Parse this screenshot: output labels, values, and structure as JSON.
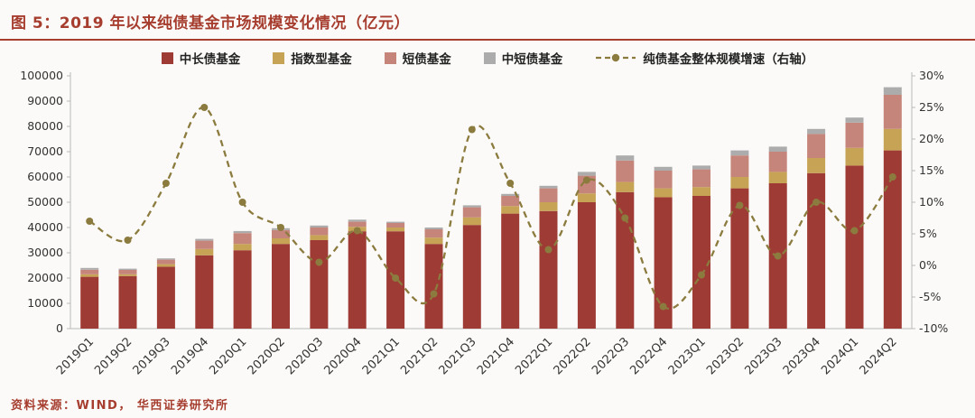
{
  "header": {
    "title": "图 5：2019 年以来纯债基金市场规模变化情况（亿元）"
  },
  "footer": {
    "source": "资料来源：WIND， 华西证券研究所"
  },
  "colors": {
    "accent_red": "#A63D2F",
    "axis_text": "#333333"
  },
  "chart_data": {
    "type": "bar",
    "subtype": "stacked-bar-with-line",
    "title": "2019 年以来纯债基金市场规模变化情况（亿元）",
    "grid": false,
    "legend_position": "top",
    "categories": [
      "2019Q1",
      "2019Q2",
      "2019Q3",
      "2019Q4",
      "2020Q1",
      "2020Q2",
      "2020Q3",
      "2020Q4",
      "2021Q1",
      "2021Q2",
      "2021Q3",
      "2021Q4",
      "2022Q1",
      "2022Q2",
      "2022Q3",
      "2022Q4",
      "2023Q1",
      "2023Q2",
      "2023Q3",
      "2023Q4",
      "2024Q1",
      "2024Q2"
    ],
    "series": [
      {
        "name": "中长债基金",
        "color": "#9F3B35",
        "values": [
          20500,
          20800,
          24500,
          29000,
          31000,
          33500,
          35000,
          38500,
          38500,
          33500,
          41000,
          45500,
          46500,
          50000,
          54000,
          52000,
          52500,
          55500,
          57500,
          61500,
          64500,
          70500
        ]
      },
      {
        "name": "指数型基金",
        "color": "#C6A355",
        "values": [
          1000,
          700,
          1000,
          2500,
          2500,
          2200,
          2000,
          1800,
          1500,
          2500,
          3000,
          3000,
          3500,
          3500,
          4000,
          3500,
          3500,
          4500,
          4500,
          6000,
          7000,
          8500
        ]
      },
      {
        "name": "短债基金",
        "color": "#C6857A",
        "values": [
          1800,
          1700,
          1800,
          3300,
          4300,
          3300,
          3000,
          2000,
          1800,
          3300,
          4000,
          4000,
          5500,
          7000,
          8500,
          7000,
          7000,
          8500,
          8000,
          9500,
          10000,
          13500
        ]
      },
      {
        "name": "中短债基金",
        "color": "#ACACAC",
        "values": [
          700,
          500,
          500,
          700,
          800,
          700,
          800,
          800,
          500,
          700,
          800,
          800,
          1000,
          1500,
          2000,
          1500,
          1500,
          2000,
          2000,
          2000,
          2000,
          3000
        ]
      }
    ],
    "line": {
      "name": "纯债基金整体规模增速（右轴）",
      "color": "#8C7B3E",
      "style": "dashed",
      "axis": "right",
      "values": [
        7,
        4,
        13,
        25,
        10,
        6,
        0.5,
        5.5,
        -2,
        -4.5,
        21.5,
        13,
        2.5,
        13.5,
        7.5,
        -6.5,
        -1.5,
        9.5,
        1.5,
        10,
        5.5,
        14
      ]
    },
    "left_axis": {
      "min": 0,
      "max": 100000,
      "step": 10000,
      "ticks": [
        "0",
        "10000",
        "20000",
        "30000",
        "40000",
        "50000",
        "60000",
        "70000",
        "80000",
        "90000",
        "100000"
      ]
    },
    "right_axis": {
      "min": -10,
      "max": 30,
      "step": 5,
      "format": "percent",
      "ticks": [
        "-10%",
        "-5%",
        "0%",
        "5%",
        "10%",
        "15%",
        "20%",
        "25%",
        "30%"
      ]
    }
  }
}
